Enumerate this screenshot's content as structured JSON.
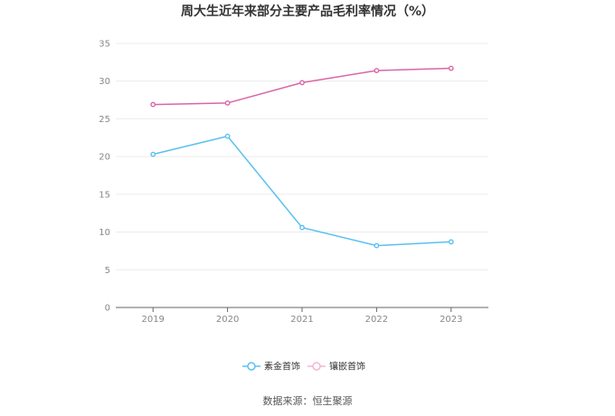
{
  "chart_data": {
    "type": "line",
    "title": "周大生近年来部分主要产品毛利率情况（%）",
    "xlabel": "",
    "ylabel": "",
    "categories": [
      "2019",
      "2020",
      "2021",
      "2022",
      "2023"
    ],
    "ylim": [
      0,
      35
    ],
    "yticks": [
      0,
      5,
      10,
      15,
      20,
      25,
      30,
      35
    ],
    "grid": true,
    "legend_position": "bottom",
    "series": [
      {
        "name": "素金首饰",
        "color": "#5bc0f0",
        "values": [
          20.3,
          22.7,
          10.6,
          8.2,
          8.7
        ]
      },
      {
        "name": "镶嵌首饰",
        "color": "#d966a8",
        "values": [
          26.9,
          27.1,
          29.8,
          31.4,
          31.7
        ]
      }
    ]
  },
  "footer": {
    "source": "数据来源：恒生聚源"
  }
}
